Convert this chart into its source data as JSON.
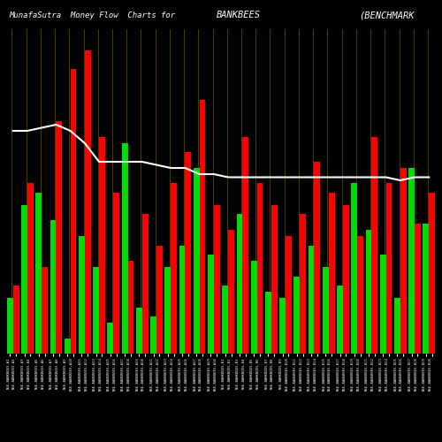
{
  "title": "MunafaSutra  Money Flow  Charts for",
  "title2": "BANKBEES",
  "title3": "(BENCHMARK",
  "background_color": "#000000",
  "grid_color": "#7a5500",
  "bar_green": "#00dd00",
  "bar_red": "#ff0000",
  "line_color": "#ffffff",
  "fig_size": [
    5.0,
    5.0
  ],
  "dpi": 100,
  "n_groups": 30,
  "green_heights": [
    18,
    48,
    52,
    43,
    5,
    38,
    28,
    10,
    68,
    15,
    12,
    28,
    35,
    60,
    32,
    22,
    45,
    30,
    20,
    18,
    25,
    35,
    28,
    22,
    55,
    40,
    32,
    18,
    60,
    42
  ],
  "red_heights": [
    22,
    55,
    28,
    75,
    92,
    98,
    70,
    52,
    30,
    45,
    35,
    55,
    65,
    82,
    48,
    40,
    70,
    55,
    48,
    38,
    45,
    62,
    52,
    48,
    38,
    70,
    55,
    60,
    42,
    52
  ],
  "line_y_x": [
    0,
    1,
    2,
    3,
    4,
    5,
    6,
    7,
    8,
    9,
    10,
    11,
    12,
    13,
    14,
    15,
    16,
    17,
    18,
    19,
    20,
    21,
    22,
    23,
    24,
    25,
    26,
    27,
    28,
    29
  ],
  "line_y": [
    72,
    72,
    73,
    74,
    72,
    68,
    62,
    62,
    62,
    62,
    61,
    60,
    60,
    58,
    58,
    57,
    57,
    57,
    57,
    57,
    57,
    57,
    57,
    57,
    57,
    57,
    57,
    56,
    57,
    57
  ],
  "x_labels": [
    "NSE.BANKBEES.A1",
    "NSE.BANKBEES.A2",
    "NSE.BANKBEES.A3",
    "NSE.BANKBEES.A4",
    "NSE.BANKBEES.A5",
    "NSE.BANKBEES.A6",
    "NSE.BANKBEES.A7",
    "NSE.BANKBEES.A8",
    "NSE.BANKBEES.A9",
    "NSE.BANKBEES.A10",
    "NSE.BANKBEES.A11",
    "NSE.BANKBEES.A12",
    "NSE.BANKBEES.A13",
    "NSE.BANKBEES.A14",
    "NSE.BANKBEES.A15",
    "NSE.BANKBEES.A16",
    "NSE.BANKBEES.A17",
    "NSE.BANKBEES.A18",
    "NSE.BANKBEES.A19",
    "NSE.BANKBEES.A20",
    "NSE.BANKBEES.A21",
    "NSE.BANKBEES.A22",
    "NSE.BANKBEES.A23",
    "NSE.BANKBEES.A24",
    "NSE.BANKBEES.A25",
    "NSE.BANKBEES.A26",
    "NSE.BANKBEES.A27",
    "NSE.BANKBEES.A28",
    "NSE.BANKBEES.A29",
    "NSE.BANKBEES.A30",
    "NSE.BANKBEES.B1",
    "NSE.BANKBEES.B2",
    "NSE.BANKBEES.B3",
    "NSE.BANKBEES.B4",
    "NSE.BANKBEES.B5",
    "NSE.BANKBEES.B6",
    "NSE.BANKBEES.B7",
    "NSE.BANKBEES.B8",
    "NSE.BANKBEES.B9",
    "NSE.BANKBEES.B10",
    "NSE.BANKBEES.B11",
    "NSE.BANKBEES.B12",
    "NSE.BANKBEES.B13",
    "NSE.BANKBEES.B14",
    "NSE.BANKBEES.B15",
    "NSE.BANKBEES.B16",
    "NSE.BANKBEES.B17",
    "NSE.BANKBEES.B18",
    "NSE.BANKBEES.B19",
    "NSE.BANKBEES.B20",
    "NSE.BANKBEES.B21",
    "NSE.BANKBEES.B22",
    "NSE.BANKBEES.B23",
    "NSE.BANKBEES.B24",
    "NSE.BANKBEES.B25",
    "NSE.BANKBEES.B26",
    "NSE.BANKBEES.B27",
    "NSE.BANKBEES.B28",
    "NSE.BANKBEES.B29",
    "NSE.BANKBEES.B30"
  ]
}
